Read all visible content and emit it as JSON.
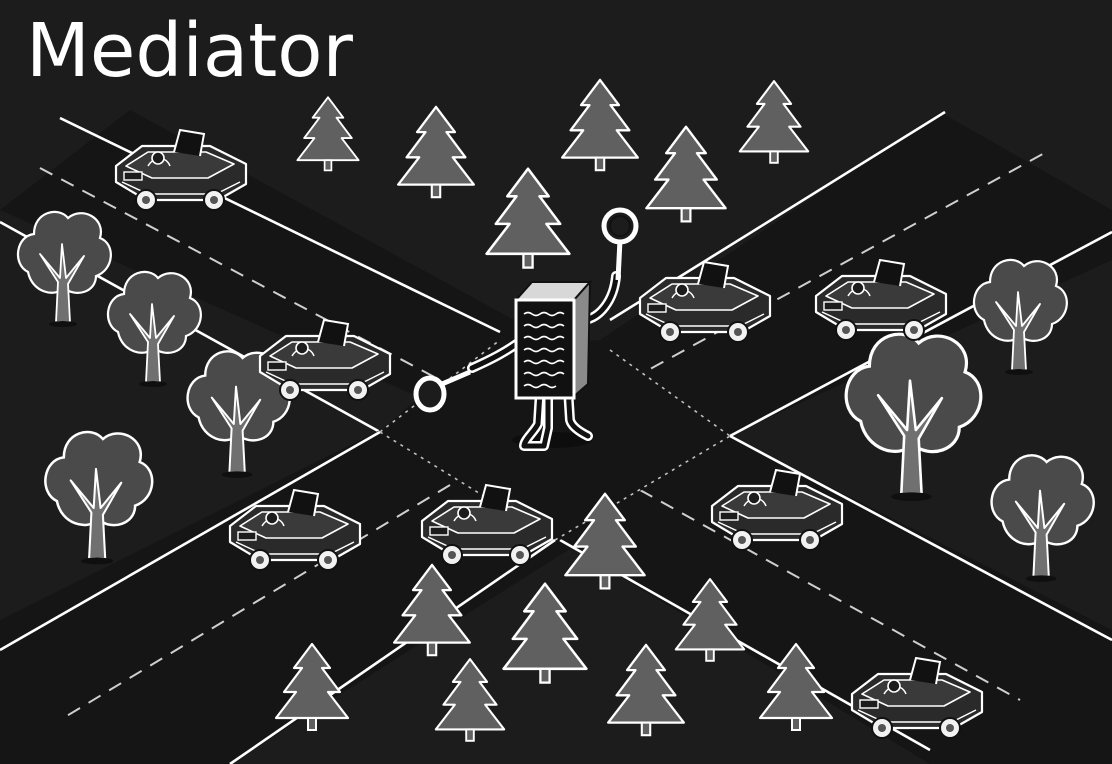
{
  "title": "Mediator",
  "colors": {
    "background": "#1c1c1c",
    "road": "#151515",
    "road_edge": "#ffffff",
    "tree": "#606060",
    "tree_outline": "#ffffff",
    "car_body": "#2a2a2a",
    "car_outline": "#ffffff"
  },
  "illustration": {
    "subject": "mediator-document-character",
    "scene": "road-intersection"
  }
}
